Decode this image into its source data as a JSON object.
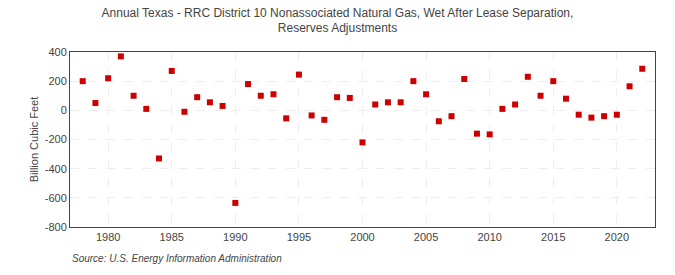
{
  "chart_data": {
    "type": "scatter",
    "title": "Annual Texas - RRC District 10 Nonassociated Natural Gas, Wet After Lease Separation,\nReserves Adjustments",
    "ylabel": "Billion Cubic Feet",
    "annotations": [
      "Source: U.S. Energy Information Administration"
    ],
    "x": [
      1978,
      1979,
      1980,
      1981,
      1982,
      1983,
      1984,
      1985,
      1986,
      1987,
      1988,
      1989,
      1990,
      1991,
      1992,
      1993,
      1994,
      1995,
      1996,
      1997,
      1998,
      1999,
      2000,
      2001,
      2002,
      2003,
      2004,
      2005,
      2006,
      2007,
      2008,
      2009,
      2010,
      2011,
      2012,
      2013,
      2014,
      2015,
      2016,
      2017,
      2018,
      2019,
      2020,
      2021,
      2022
    ],
    "values": [
      200,
      50,
      220,
      370,
      100,
      10,
      -330,
      270,
      -10,
      90,
      55,
      30,
      -635,
      180,
      100,
      110,
      -55,
      245,
      -35,
      -65,
      90,
      85,
      -220,
      40,
      55,
      55,
      200,
      110,
      -75,
      -40,
      215,
      -160,
      -165,
      10,
      40,
      230,
      100,
      200,
      80,
      -30,
      -50,
      -40,
      -30,
      165,
      285
    ],
    "color": "#cc0000",
    "marker": "square",
    "xlim": [
      1977,
      2023
    ],
    "xticks": [
      1980,
      1985,
      1990,
      1995,
      2000,
      2005,
      2010,
      2015,
      2020
    ],
    "ylim": [
      -800,
      400
    ],
    "yticks": [
      -800,
      -600,
      -400,
      -200,
      0,
      200,
      400
    ],
    "grid": true
  }
}
